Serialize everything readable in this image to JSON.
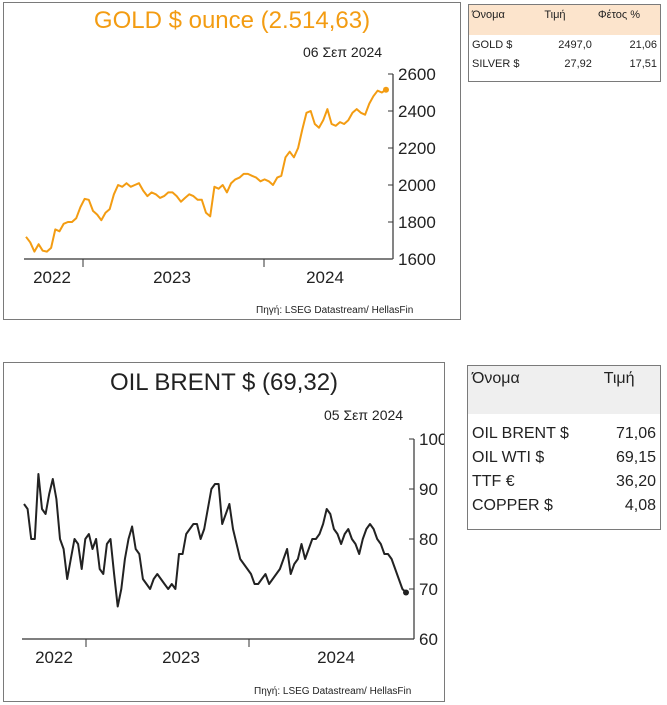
{
  "gold_panel": {
    "title": "GOLD $ ounce (2.514,63)",
    "date": "06 Σεπ 2024",
    "source": "Πηγή: LSEG Datastream/ HellasFin",
    "color": "#f39c12"
  },
  "gold_table": {
    "headers": [
      "Όνομα",
      "Τιμή",
      "Φέτος %"
    ],
    "rows": [
      [
        "GOLD $",
        "2497,0",
        "21,06"
      ],
      [
        "SILVER $",
        "27,92",
        "17,51"
      ]
    ],
    "header_bg": "#fce4cc"
  },
  "oil_panel": {
    "title": "OIL BRENT $ (69,32)",
    "date": "05 Σεπ 2024",
    "source": "Πηγή: LSEG Datastream/ HellasFin",
    "color": "#222222"
  },
  "oil_table": {
    "headers": [
      "Όνομα",
      "Τιμή"
    ],
    "rows": [
      [
        "OIL BRENT $",
        "71,06"
      ],
      [
        "OIL WTI $",
        "69,15"
      ],
      [
        "TTF €",
        "36,20"
      ],
      [
        "COPPER $",
        "4,08"
      ]
    ],
    "header_bg": "#efefef"
  },
  "chart_data": [
    {
      "type": "line",
      "title": "GOLD $ ounce (2.514,63)",
      "x_labels": [
        "2022",
        "2023",
        "2024"
      ],
      "ylim": [
        1600,
        2600
      ],
      "yticks": [
        1600,
        1800,
        2000,
        2200,
        2400,
        2600
      ],
      "grid": false,
      "end_marker": true,
      "series": [
        {
          "values": [
            1720,
            1690,
            1640,
            1680,
            1645,
            1640,
            1660,
            1760,
            1750,
            1790,
            1800,
            1800,
            1820,
            1880,
            1925,
            1920,
            1860,
            1840,
            1810,
            1850,
            1870,
            1950,
            2000,
            1990,
            2010,
            1990,
            2000,
            2010,
            1970,
            1940,
            1960,
            1950,
            1930,
            1940,
            1960,
            1960,
            1940,
            1910,
            1930,
            1950,
            1940,
            1920,
            1920,
            1850,
            1830,
            1990,
            1980,
            2000,
            1960,
            2010,
            2030,
            2040,
            2060,
            2060,
            2050,
            2040,
            2020,
            2030,
            2020,
            2000,
            2040,
            2050,
            2150,
            2180,
            2150,
            2200,
            2300,
            2390,
            2400,
            2330,
            2310,
            2350,
            2410,
            2330,
            2320,
            2340,
            2330,
            2350,
            2390,
            2410,
            2390,
            2380,
            2440,
            2480,
            2510,
            2500,
            2515
          ]
        }
      ]
    },
    {
      "type": "line",
      "title": "OIL BRENT $ (69,32)",
      "x_labels": [
        "2022",
        "2023",
        "2024"
      ],
      "ylim": [
        60,
        100
      ],
      "yticks": [
        60,
        70,
        80,
        90,
        100
      ],
      "grid": false,
      "end_marker": true,
      "series": [
        {
          "values": [
            87,
            86,
            80,
            80,
            93,
            86,
            85,
            89,
            92,
            88,
            80,
            78,
            72,
            76,
            80,
            79,
            74,
            80,
            81,
            78,
            80,
            74,
            73,
            79,
            80,
            73,
            66.5,
            70,
            76,
            80,
            82.5,
            78,
            77,
            72,
            71,
            70,
            72,
            73,
            72,
            71,
            70,
            71,
            70,
            77,
            77,
            81,
            82,
            83,
            83,
            80,
            82,
            86,
            90,
            91,
            91,
            83,
            85,
            87,
            82,
            79,
            76,
            75,
            74,
            73,
            71,
            71,
            72,
            73,
            71,
            72,
            73,
            74,
            76,
            78,
            73,
            75,
            76,
            79,
            76,
            78,
            80,
            80,
            81,
            83,
            86,
            85,
            82,
            81,
            79,
            81,
            82,
            80,
            79,
            77,
            80,
            82,
            83,
            82,
            80,
            79,
            77,
            77,
            76,
            74,
            72,
            70,
            69.3
          ]
        }
      ]
    }
  ]
}
